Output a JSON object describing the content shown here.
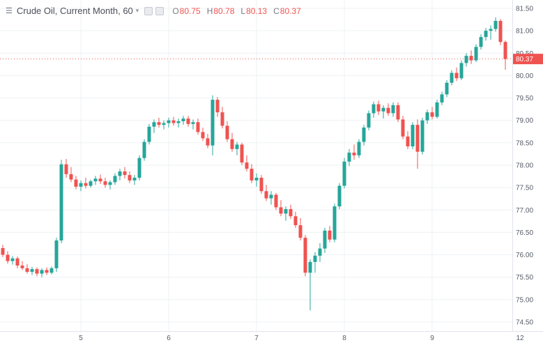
{
  "header": {
    "title": "Crude Oil, Current Month, 60",
    "ohlc": {
      "o_label": "O",
      "o_value": "80.75",
      "h_label": "H",
      "h_value": "80.78",
      "l_label": "L",
      "l_value": "80.13",
      "c_label": "C",
      "c_value": "80.37"
    }
  },
  "icons": {
    "legend_menu": "☰",
    "chevron_down": "▾"
  },
  "colors": {
    "up": "#26a69a",
    "down": "#ef5350",
    "grid": "#eef0f3",
    "axis_text": "#555b66",
    "border": "#e0e3eb",
    "last_price_bg": "#ef5350",
    "last_price_text": "#ffffff"
  },
  "chart_data": {
    "type": "candlestick",
    "symbol": "Crude Oil, Current Month",
    "interval": "60",
    "last_price": 80.37,
    "y_axis": {
      "min": 74.5,
      "max": 81.5,
      "step": 0.5,
      "ticks": [
        81.5,
        81.0,
        80.5,
        80.0,
        79.5,
        79.0,
        78.5,
        78.0,
        77.5,
        77.0,
        76.5,
        76.0,
        75.5,
        75.0,
        74.5
      ]
    },
    "x_axis": {
      "labels": [
        {
          "text": "5",
          "i": 16
        },
        {
          "text": "6",
          "i": 34
        },
        {
          "text": "7",
          "i": 52
        },
        {
          "text": "8",
          "i": 70
        },
        {
          "text": "9",
          "i": 88
        },
        {
          "text": "12",
          "i": 106
        }
      ]
    },
    "candles": [
      [
        76.15,
        76.22,
        75.95,
        76.0
      ],
      [
        76.0,
        76.08,
        75.8,
        75.86
      ],
      [
        75.86,
        75.97,
        75.78,
        75.92
      ],
      [
        75.92,
        75.96,
        75.7,
        75.76
      ],
      [
        75.76,
        75.86,
        75.66,
        75.7
      ],
      [
        75.7,
        75.79,
        75.58,
        75.62
      ],
      [
        75.62,
        75.73,
        75.55,
        75.68
      ],
      [
        75.68,
        75.72,
        75.52,
        75.58
      ],
      [
        75.58,
        75.7,
        75.5,
        75.66
      ],
      [
        75.66,
        75.72,
        75.55,
        75.6
      ],
      [
        75.6,
        75.74,
        75.56,
        75.7
      ],
      [
        75.7,
        76.38,
        75.62,
        76.32
      ],
      [
        76.32,
        78.12,
        76.26,
        78.02
      ],
      [
        78.02,
        78.14,
        77.72,
        77.8
      ],
      [
        77.8,
        77.96,
        77.62,
        77.68
      ],
      [
        77.68,
        77.76,
        77.46,
        77.52
      ],
      [
        77.52,
        77.66,
        77.42,
        77.6
      ],
      [
        77.6,
        77.72,
        77.48,
        77.54
      ],
      [
        77.54,
        77.68,
        77.5,
        77.64
      ],
      [
        77.64,
        77.76,
        77.56,
        77.7
      ],
      [
        77.7,
        77.79,
        77.58,
        77.64
      ],
      [
        77.64,
        77.72,
        77.5,
        77.56
      ],
      [
        77.56,
        77.66,
        77.46,
        77.62
      ],
      [
        77.62,
        77.82,
        77.56,
        77.76
      ],
      [
        77.76,
        77.92,
        77.66,
        77.86
      ],
      [
        77.86,
        77.96,
        77.7,
        77.78
      ],
      [
        77.78,
        77.86,
        77.6,
        77.66
      ],
      [
        77.66,
        77.78,
        77.56,
        77.72
      ],
      [
        77.72,
        78.22,
        77.66,
        78.16
      ],
      [
        78.16,
        78.58,
        78.1,
        78.52
      ],
      [
        78.52,
        78.92,
        78.46,
        78.86
      ],
      [
        78.86,
        79.02,
        78.72,
        78.96
      ],
      [
        78.96,
        79.06,
        78.84,
        78.9
      ],
      [
        78.9,
        79.0,
        78.8,
        78.94
      ],
      [
        78.94,
        79.06,
        78.84,
        79.0
      ],
      [
        79.0,
        79.08,
        78.88,
        78.94
      ],
      [
        78.94,
        79.04,
        78.84,
        78.98
      ],
      [
        78.98,
        79.1,
        78.9,
        79.04
      ],
      [
        79.04,
        79.1,
        78.86,
        78.92
      ],
      [
        78.92,
        79.02,
        78.8,
        78.96
      ],
      [
        78.96,
        79.04,
        78.68,
        78.74
      ],
      [
        78.74,
        78.84,
        78.54,
        78.6
      ],
      [
        78.6,
        78.7,
        78.38,
        78.44
      ],
      [
        78.44,
        79.56,
        78.22,
        79.46
      ],
      [
        79.46,
        79.52,
        79.08,
        79.18
      ],
      [
        79.18,
        79.3,
        78.82,
        78.88
      ],
      [
        78.88,
        78.98,
        78.52,
        78.58
      ],
      [
        78.58,
        78.72,
        78.3,
        78.36
      ],
      [
        78.36,
        78.52,
        78.22,
        78.46
      ],
      [
        78.46,
        78.5,
        78.0,
        78.06
      ],
      [
        78.06,
        78.22,
        77.86,
        77.92
      ],
      [
        77.92,
        78.02,
        77.6,
        77.66
      ],
      [
        77.66,
        77.82,
        77.52,
        77.72
      ],
      [
        77.72,
        77.78,
        77.36,
        77.42
      ],
      [
        77.42,
        77.56,
        77.2,
        77.26
      ],
      [
        77.26,
        77.42,
        77.12,
        77.34
      ],
      [
        77.34,
        77.38,
        77.0,
        77.06
      ],
      [
        77.06,
        77.22,
        76.86,
        76.92
      ],
      [
        76.92,
        77.08,
        76.76,
        77.02
      ],
      [
        77.02,
        77.12,
        76.8,
        76.86
      ],
      [
        76.86,
        76.96,
        76.6,
        76.66
      ],
      [
        76.66,
        76.82,
        76.32,
        76.38
      ],
      [
        76.38,
        76.44,
        75.52,
        75.6
      ],
      [
        75.6,
        75.9,
        74.76,
        75.84
      ],
      [
        75.84,
        76.06,
        75.6,
        75.98
      ],
      [
        75.98,
        76.26,
        75.84,
        76.14
      ],
      [
        76.14,
        76.6,
        76.04,
        76.54
      ],
      [
        76.54,
        76.64,
        76.28,
        76.34
      ],
      [
        76.34,
        77.14,
        76.28,
        77.08
      ],
      [
        77.08,
        77.6,
        77.02,
        77.54
      ],
      [
        77.54,
        78.16,
        77.48,
        78.08
      ],
      [
        78.08,
        78.36,
        77.98,
        78.28
      ],
      [
        78.28,
        78.46,
        78.12,
        78.22
      ],
      [
        78.22,
        78.58,
        78.16,
        78.52
      ],
      [
        78.52,
        78.9,
        78.44,
        78.84
      ],
      [
        78.84,
        79.22,
        78.78,
        79.16
      ],
      [
        79.16,
        79.42,
        79.06,
        79.36
      ],
      [
        79.36,
        79.44,
        79.12,
        79.2
      ],
      [
        79.2,
        79.34,
        79.04,
        79.28
      ],
      [
        79.28,
        79.38,
        79.1,
        79.16
      ],
      [
        79.16,
        79.4,
        79.08,
        79.34
      ],
      [
        79.34,
        79.4,
        78.96,
        79.02
      ],
      [
        79.02,
        79.1,
        78.58,
        78.64
      ],
      [
        78.64,
        78.76,
        78.36,
        78.42
      ],
      [
        78.42,
        78.96,
        78.36,
        78.9
      ],
      [
        78.9,
        79.02,
        77.92,
        78.3
      ],
      [
        78.3,
        79.06,
        78.24,
        79.0
      ],
      [
        79.0,
        79.24,
        78.92,
        79.18
      ],
      [
        79.18,
        79.3,
        79.02,
        79.08
      ],
      [
        79.08,
        79.46,
        79.04,
        79.4
      ],
      [
        79.4,
        79.64,
        79.34,
        79.58
      ],
      [
        79.58,
        79.9,
        79.52,
        79.84
      ],
      [
        79.84,
        80.12,
        79.78,
        80.06
      ],
      [
        80.06,
        80.18,
        79.88,
        79.94
      ],
      [
        79.94,
        80.34,
        79.9,
        80.28
      ],
      [
        80.28,
        80.5,
        80.2,
        80.44
      ],
      [
        80.44,
        80.56,
        80.26,
        80.34
      ],
      [
        80.34,
        80.7,
        80.3,
        80.64
      ],
      [
        80.64,
        80.92,
        80.58,
        80.86
      ],
      [
        80.86,
        81.06,
        80.78,
        81.0
      ],
      [
        81.0,
        81.12,
        80.8,
        81.04
      ],
      [
        81.04,
        81.3,
        80.98,
        81.22
      ],
      [
        81.22,
        81.26,
        80.68,
        80.75
      ],
      [
        80.75,
        80.78,
        80.13,
        80.37
      ]
    ]
  }
}
